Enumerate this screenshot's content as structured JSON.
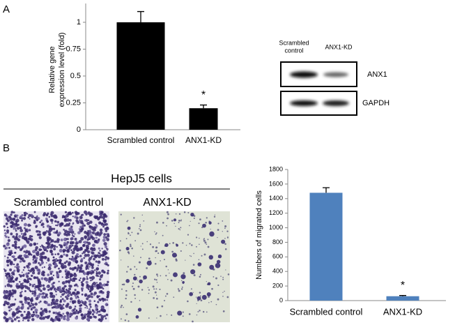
{
  "panel_labels": [
    "A",
    "B"
  ],
  "chart_data": [
    {
      "type": "bar",
      "ylabel": [
        "Relative gene",
        "expression level (fold)"
      ],
      "categories": [
        "Scrambled control",
        "ANX1-KD"
      ],
      "values": [
        1.0,
        0.2
      ],
      "errors": [
        0.1,
        0.03
      ],
      "annotations": [
        null,
        "*"
      ],
      "color": "#000000",
      "ylim": [
        0,
        1.175
      ],
      "yticks": [
        0,
        0.25,
        0.5,
        0.75,
        1
      ]
    },
    {
      "type": "bar",
      "ylabel": [
        "Numbers of migrated cells"
      ],
      "categories": [
        "Scrambled control",
        "ANX1-KD"
      ],
      "values": [
        1480,
        60
      ],
      "errors": [
        70,
        10
      ],
      "annotations": [
        null,
        "*"
      ],
      "color": "#4f81bd",
      "ylim": [
        0,
        1800
      ],
      "yticks": [
        0,
        200,
        400,
        600,
        800,
        1000,
        1200,
        1400,
        1600,
        1800
      ]
    }
  ],
  "blot": {
    "lane_labels": [
      [
        "Scrambled",
        "control"
      ],
      [
        "ANX1-KD"
      ]
    ],
    "proteins": [
      "ANX1",
      "GAPDH"
    ]
  },
  "micrographs": {
    "title": "HepJ5 cells",
    "labels": [
      "Scrambled control",
      "ANX1-KD"
    ]
  }
}
